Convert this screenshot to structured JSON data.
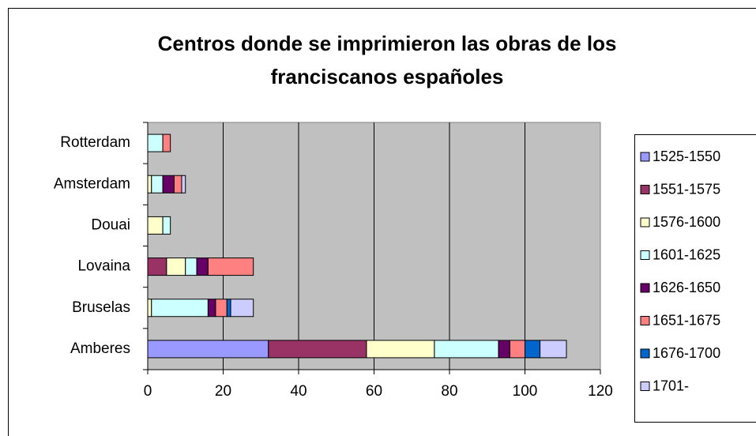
{
  "chart_data": {
    "type": "stacked-bar-horizontal",
    "title": [
      "Centros donde se imprimieron las obras de los",
      "franciscanos españoles"
    ],
    "categories": [
      "Amberes",
      "Bruselas",
      "Lovaina",
      "Douai",
      "Amsterdam",
      "Rotterdam"
    ],
    "series": [
      {
        "name": "1525-1550",
        "color": "#9999ff",
        "values": [
          32,
          0,
          0,
          0,
          0,
          0
        ]
      },
      {
        "name": "1551-1575",
        "color": "#993366",
        "values": [
          26,
          0,
          5,
          0,
          0,
          0
        ]
      },
      {
        "name": "1576-1600",
        "color": "#ffffcc",
        "values": [
          18,
          1,
          5,
          4,
          1,
          0
        ]
      },
      {
        "name": "1601-1625",
        "color": "#ccffff",
        "values": [
          17,
          15,
          3,
          2,
          3,
          4
        ]
      },
      {
        "name": "1626-1650",
        "color": "#660066",
        "values": [
          3,
          2,
          3,
          0,
          3,
          0
        ]
      },
      {
        "name": "1651-1675",
        "color": "#ff8080",
        "values": [
          4,
          3,
          12,
          0,
          2,
          2
        ]
      },
      {
        "name": "1676-1700",
        "color": "#0066cc",
        "values": [
          4,
          1,
          0,
          0,
          0,
          0
        ]
      },
      {
        "name": "1701-",
        "color": "#ccccff",
        "values": [
          7,
          6,
          0,
          0,
          1,
          0
        ]
      }
    ],
    "xlim": [
      0,
      120
    ],
    "xticks": [
      0,
      20,
      40,
      60,
      80,
      100,
      120
    ],
    "grid": true,
    "legend": "right"
  }
}
